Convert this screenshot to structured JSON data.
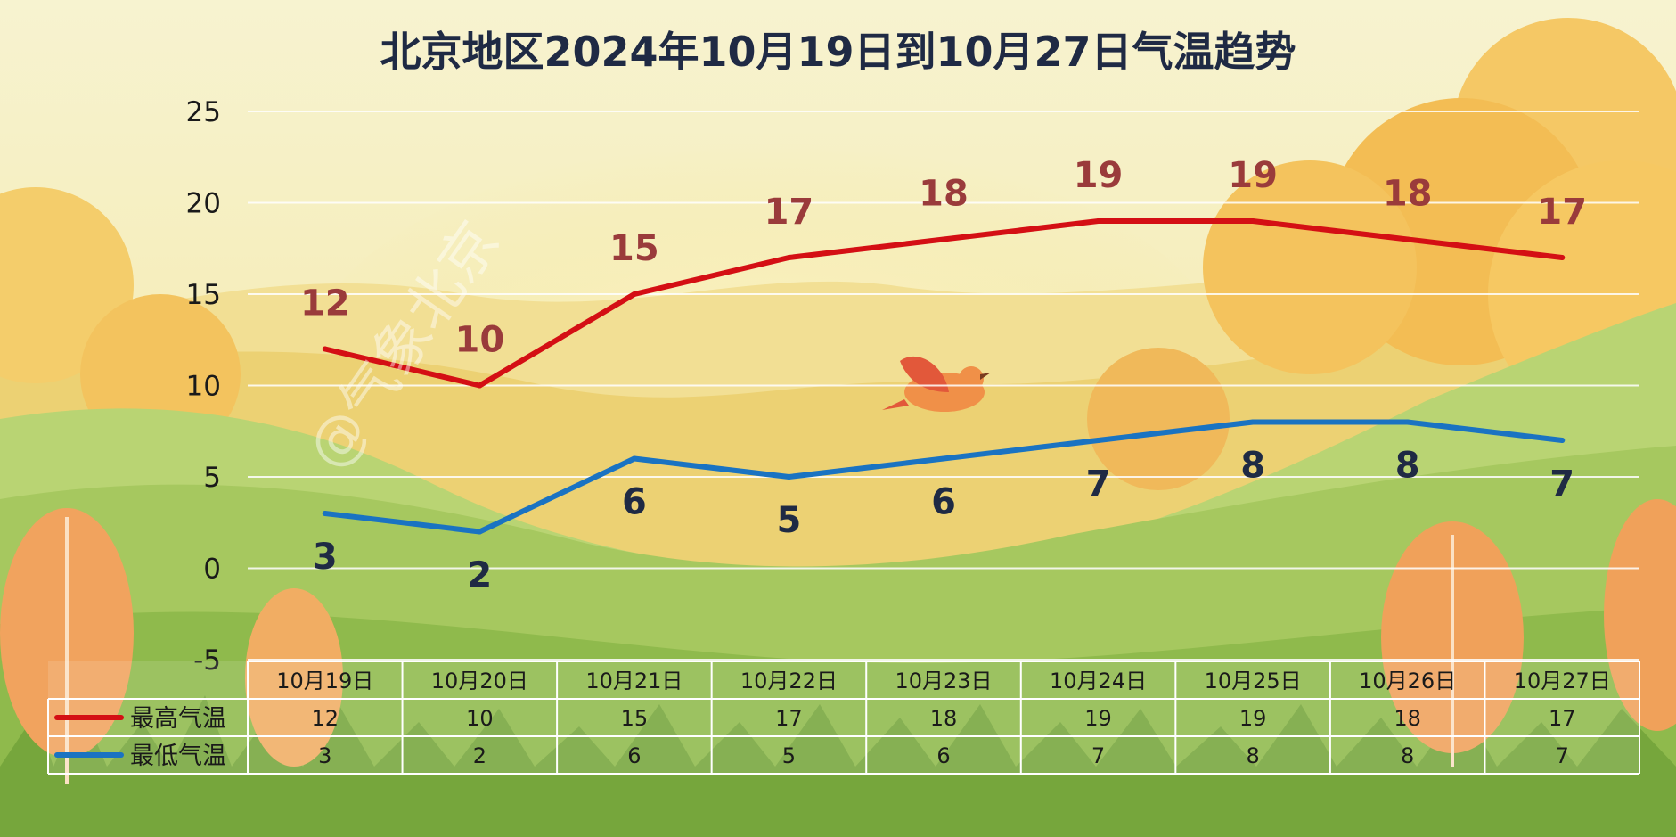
{
  "chart_data": {
    "type": "line",
    "title": "北京地区2024年10月19日到10月27日气温趋势",
    "categories": [
      "10月19日",
      "10月20日",
      "10月21日",
      "10月22日",
      "10月23日",
      "10月24日",
      "10月25日",
      "10月26日",
      "10月27日"
    ],
    "series": [
      {
        "name": "最高气温",
        "values": [
          12,
          10,
          15,
          17,
          18,
          19,
          19,
          18,
          17
        ],
        "color": "#d40f14"
      },
      {
        "name": "最低气温",
        "values": [
          3,
          2,
          6,
          5,
          6,
          7,
          8,
          8,
          7
        ],
        "color": "#1a73c2"
      }
    ],
    "ylim": [
      -5,
      25
    ],
    "yticks": [
      -5,
      0,
      5,
      10,
      15,
      20,
      25
    ],
    "grid": true,
    "legend": "data-table-left",
    "xlabel": "",
    "ylabel": ""
  },
  "watermark": "@气象北京"
}
